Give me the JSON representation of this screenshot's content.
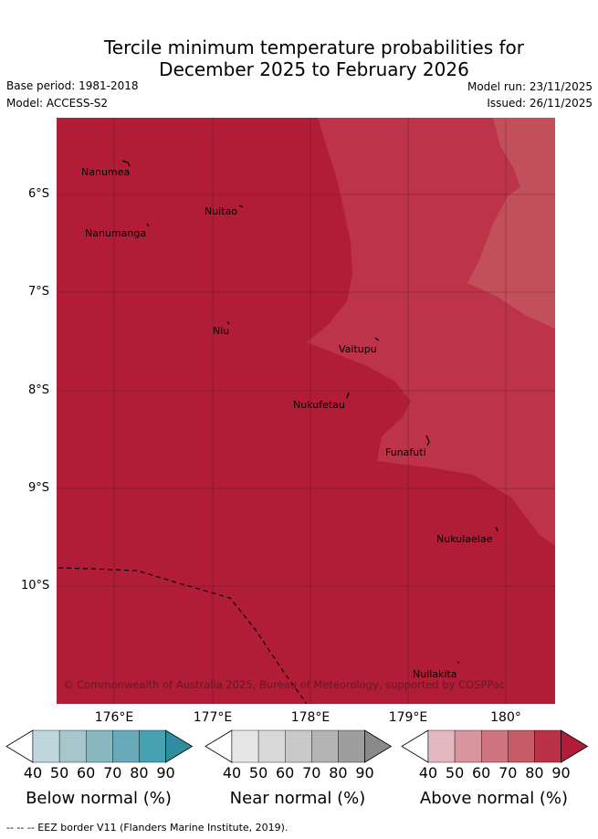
{
  "title": {
    "line1": "Tercile minimum temperature probabilities for",
    "line2": "December 2025 to February 2026"
  },
  "meta": {
    "base_period": "Base period: 1981-2018",
    "model": "Model: ACCESS-S2",
    "model_run": "Model run: 23/11/2025",
    "issued": "Issued: 26/11/2025"
  },
  "map": {
    "lat_labels": [
      "6°S",
      "7°S",
      "8°S",
      "9°S",
      "10°S"
    ],
    "lon_labels": [
      "176°E",
      "177°E",
      "178°E",
      "179°E",
      "180°"
    ],
    "places": [
      "Nanumea",
      "Nuitao",
      "Nanumanga",
      "Niu",
      "Vaitupu",
      "Nukufetau",
      "Funafuti",
      "Nukulaelae",
      "Nuilakita"
    ],
    "copyright": "© Commonwealth of Australia 2025, Bureau of Meteorology, supported by COSPPac",
    "colors": {
      "dominant": "#b11c37",
      "band_80": "#bd3349",
      "band_70": "#c2505b",
      "land": "#000000"
    }
  },
  "colorbars": [
    {
      "name": "below",
      "title": "Below normal (%)",
      "ticks": [
        "40",
        "50",
        "60",
        "70",
        "80",
        "90"
      ],
      "colors": [
        "#bfd6dc",
        "#a6c6cc",
        "#88b7c2",
        "#68aab9",
        "#46a1b0",
        "#2e8ea0"
      ]
    },
    {
      "name": "near",
      "title": "Near normal (%)",
      "ticks": [
        "40",
        "50",
        "60",
        "70",
        "80",
        "90"
      ],
      "colors": [
        "#e6e6e6",
        "#d9d9d9",
        "#c9c9c9",
        "#b4b4b4",
        "#9e9e9e",
        "#8a8a8a"
      ]
    },
    {
      "name": "above",
      "title": "Above normal (%)",
      "ticks": [
        "40",
        "50",
        "60",
        "70",
        "80",
        "90"
      ],
      "colors": [
        "#e3b8bf",
        "#d8959e",
        "#cf7581",
        "#c55b67",
        "#bb3246",
        "#b11c37"
      ]
    }
  ],
  "footer": "--  --  -- EEZ border V11 (Flanders Marine Institute, 2019)."
}
